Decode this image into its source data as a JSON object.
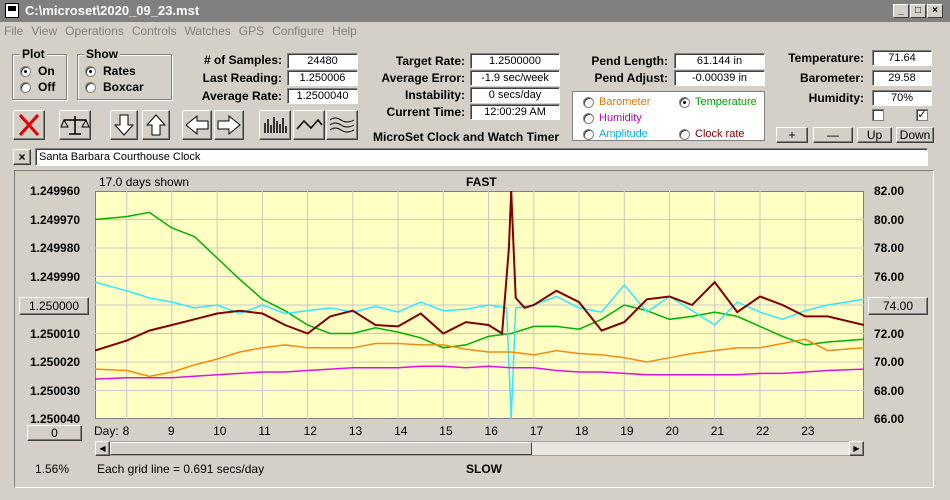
{
  "window": {
    "title": "C:\\microset\\2020_09_23.mst"
  },
  "menu": [
    "File",
    "View",
    "Operations",
    "Controls",
    "Watches",
    "GPS",
    "Configure",
    "Help"
  ],
  "plot_group": {
    "title": "Plot",
    "options": [
      "On",
      "Off"
    ],
    "selected": "On"
  },
  "show_group": {
    "title": "Show",
    "options": [
      "Rates",
      "Boxcar"
    ],
    "selected": "Rates"
  },
  "stats": {
    "samples_label": "# of Samples:",
    "samples": "24480",
    "last_reading_label": "Last Reading:",
    "last_reading": "1.250006",
    "average_rate_label": "Average Rate:",
    "average_rate": "1.2500040"
  },
  "timing": {
    "target_rate_label": "Target Rate:",
    "target_rate": "1.2500000",
    "average_error_label": "Average Error:",
    "average_error": "-1.9 sec/week",
    "instability_label": "Instability:",
    "instability": "0 secs/day",
    "current_time_label": "Current Time:",
    "current_time": "12:00:29 AM",
    "caption": "MicroSet Clock and Watch Timer"
  },
  "pendulum": {
    "length_label": "Pend Length:",
    "length": "61.144 in",
    "adjust_label": "Pend Adjust:",
    "adjust": "-0.00039 in"
  },
  "environment": {
    "temperature_label": "Temperature:",
    "temperature": "71.64",
    "barometer_label": "Barometer:",
    "barometer": "29.58",
    "humidity_label": "Humidity:",
    "humidity": "70%"
  },
  "series_select": {
    "options": [
      {
        "name": "Barometer",
        "color": "#e07800",
        "selected": false
      },
      {
        "name": "Temperature",
        "color": "#00a000",
        "selected": true
      },
      {
        "name": "Humidity",
        "color": "#c000c0",
        "selected": false
      },
      {
        "name": "Amplitude",
        "color": "#00b0e0",
        "selected": false
      },
      {
        "name": "Clock rate",
        "color": "#800000",
        "selected": false
      }
    ]
  },
  "scale_buttons": {
    "plus": "+",
    "minus": "—",
    "up": "Up",
    "down": "Down"
  },
  "clock_name": "Santa Barbara Courthouse Clock",
  "close_x": "×",
  "plot": {
    "days_shown": "17.0 days shown",
    "top_label": "FAST",
    "bottom_label": "SLOW",
    "day_label": "Day:",
    "grid_note": "Each grid line = 0.691 secs/day",
    "percent": "1.56%",
    "left_button": "1.250000",
    "right_button": "74.00",
    "bottom_left_button": "0"
  },
  "chart_data": {
    "type": "line",
    "x_ticks": [
      "8",
      "9",
      "10",
      "11",
      "12",
      "13",
      "14",
      "15",
      "16",
      "17",
      "18",
      "19",
      "20",
      "21",
      "22",
      "23"
    ],
    "xlim": [
      7.3,
      24.3
    ],
    "y_left_ticks": [
      "1.249960",
      "1.249970",
      "1.249980",
      "1.249990",
      "1.250000",
      "1.250010",
      "1.250020",
      "1.250030",
      "1.250040"
    ],
    "y_left_tick_pos": [
      0,
      1,
      2,
      3,
      4,
      5,
      6,
      7,
      8
    ],
    "y_right_ticks": [
      "82.00",
      "80.00",
      "78.00",
      "76.00",
      "74.00",
      "72.00",
      "70.00",
      "68.00",
      "66.00"
    ],
    "y_right_range": [
      66,
      82
    ],
    "series": [
      {
        "name": "Temperature",
        "color": "#00b000",
        "x": [
          7.3,
          8.0,
          8.5,
          9.0,
          9.5,
          10.0,
          10.5,
          11.0,
          11.5,
          12.0,
          12.5,
          13.0,
          13.5,
          14.0,
          14.5,
          15.0,
          15.5,
          16.0,
          16.5,
          17.0,
          17.5,
          18.0,
          18.5,
          19.0,
          19.5,
          20.0,
          20.5,
          21.0,
          21.5,
          22.0,
          22.5,
          23.0,
          23.5,
          24.3
        ],
        "y": [
          80.0,
          80.2,
          80.5,
          79.4,
          78.8,
          77.3,
          75.8,
          74.4,
          73.6,
          72.6,
          72.0,
          72.0,
          72.4,
          72.1,
          71.7,
          71.0,
          71.2,
          71.8,
          72.0,
          72.5,
          72.5,
          72.3,
          73.0,
          74.0,
          73.6,
          73.0,
          73.2,
          73.5,
          73.2,
          72.5,
          71.8,
          71.2,
          71.4,
          71.6
        ]
      },
      {
        "name": "Amplitude",
        "color": "#30e8ff",
        "x": [
          7.3,
          8.0,
          8.5,
          9.0,
          9.5,
          10.0,
          10.5,
          11.0,
          11.5,
          12.0,
          12.5,
          13.0,
          13.5,
          14.0,
          14.5,
          15.0,
          15.5,
          16.0,
          16.4,
          16.5,
          16.6,
          17.0,
          17.5,
          18.0,
          18.5,
          19.0,
          19.5,
          20.0,
          20.5,
          21.0,
          21.5,
          22.0,
          22.5,
          23.0,
          23.5,
          24.3
        ],
        "y": [
          75.6,
          75.0,
          74.5,
          74.2,
          73.8,
          74.0,
          73.4,
          74.0,
          73.4,
          73.6,
          73.8,
          73.5,
          73.9,
          73.5,
          74.2,
          73.6,
          73.7,
          74.0,
          73.8,
          66.0,
          73.8,
          74.0,
          74.6,
          73.8,
          73.5,
          75.4,
          73.5,
          74.6,
          73.6,
          72.6,
          74.2,
          73.5,
          73.0,
          73.6,
          74.0,
          74.4
        ]
      },
      {
        "name": "Clock rate",
        "color": "#800000",
        "x": [
          7.3,
          8.0,
          8.5,
          9.0,
          9.5,
          10.0,
          10.5,
          11.0,
          11.5,
          12.0,
          12.5,
          13.0,
          13.5,
          14.0,
          14.5,
          15.0,
          15.5,
          16.0,
          16.3,
          16.45,
          16.5,
          16.6,
          16.8,
          17.0,
          17.5,
          18.0,
          18.5,
          19.0,
          19.5,
          20.0,
          20.5,
          21.0,
          21.5,
          22.0,
          22.5,
          23.0,
          23.5,
          24.3
        ],
        "y": [
          70.8,
          71.5,
          72.2,
          72.6,
          73.0,
          73.4,
          73.6,
          73.4,
          72.6,
          72.0,
          73.2,
          73.6,
          72.6,
          72.5,
          73.4,
          72.0,
          72.8,
          72.6,
          72.0,
          78.0,
          82.0,
          74.5,
          73.8,
          74.0,
          75.0,
          74.2,
          72.2,
          72.8,
          74.4,
          74.6,
          74.0,
          75.6,
          73.5,
          74.6,
          74.0,
          73.2,
          73.2,
          72.6
        ]
      },
      {
        "name": "Barometer",
        "color": "#f08c10",
        "x": [
          7.3,
          8.0,
          8.5,
          9.0,
          9.5,
          10.0,
          10.5,
          11.0,
          11.5,
          12.0,
          12.5,
          13.0,
          13.5,
          14.0,
          14.5,
          15.0,
          15.5,
          16.0,
          16.5,
          17.0,
          17.5,
          18.0,
          18.5,
          19.0,
          19.5,
          20.0,
          20.5,
          21.0,
          21.5,
          22.0,
          22.5,
          23.0,
          23.5,
          24.3
        ],
        "y": [
          69.5,
          69.4,
          69.0,
          69.3,
          69.8,
          70.2,
          70.7,
          71.0,
          71.2,
          71.0,
          71.0,
          71.0,
          71.3,
          71.3,
          71.2,
          71.2,
          70.9,
          70.7,
          70.7,
          70.5,
          70.8,
          70.6,
          70.5,
          70.3,
          70.0,
          70.3,
          70.6,
          70.8,
          71.0,
          71.0,
          71.3,
          71.6,
          70.8,
          71.0
        ]
      },
      {
        "name": "Humidity",
        "color": "#e010e0",
        "x": [
          7.3,
          8.0,
          8.5,
          9.0,
          9.5,
          10.0,
          10.5,
          11.0,
          11.5,
          12.0,
          12.5,
          13.0,
          13.5,
          14.0,
          14.5,
          15.0,
          15.5,
          16.0,
          16.5,
          17.0,
          17.5,
          18.0,
          18.5,
          19.0,
          19.5,
          20.0,
          20.5,
          21.0,
          21.5,
          22.0,
          22.5,
          23.0,
          23.5,
          24.3
        ],
        "y": [
          68.8,
          68.9,
          68.9,
          68.9,
          69.0,
          69.1,
          69.2,
          69.3,
          69.3,
          69.4,
          69.5,
          69.6,
          69.6,
          69.6,
          69.7,
          69.7,
          69.6,
          69.7,
          69.6,
          69.6,
          69.4,
          69.3,
          69.3,
          69.2,
          69.1,
          69.1,
          69.1,
          69.1,
          69.1,
          69.2,
          69.2,
          69.3,
          69.4,
          69.5
        ]
      }
    ]
  }
}
